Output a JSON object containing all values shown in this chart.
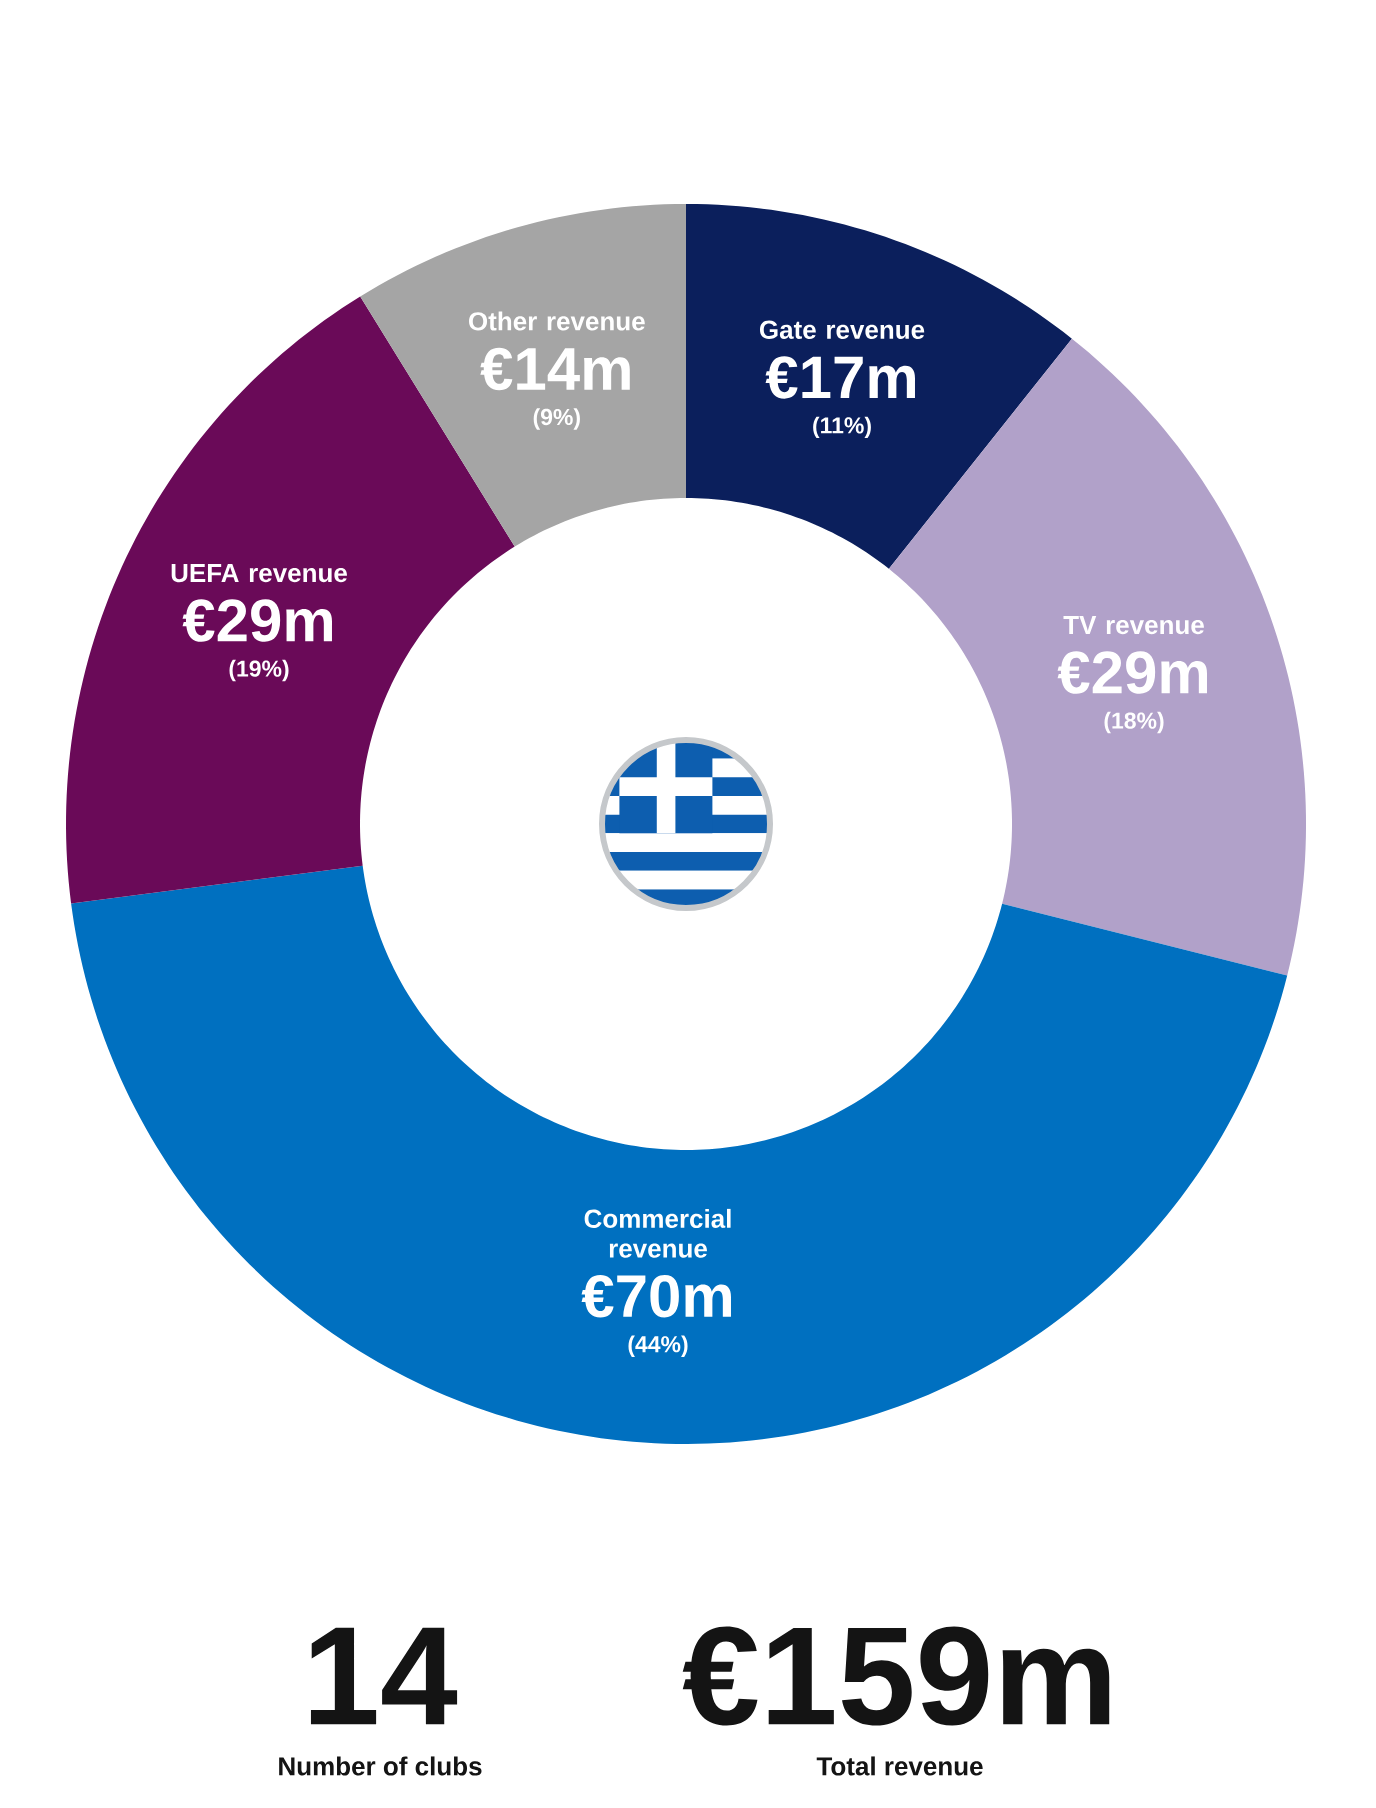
{
  "chart_data": [
    {
      "type": "donut",
      "categories": [
        "Gate revenue",
        "TV revenue",
        "Commercial revenue",
        "UEFA revenue",
        "Other revenue"
      ],
      "values": [
        17,
        29,
        70,
        29,
        14
      ],
      "colors": [
        "#0b1f5c",
        "#b1a1c9",
        "#0070c0",
        "#6a0a58",
        "#a5a5a5"
      ],
      "value_labels": [
        "€17m",
        "€29m",
        "€70m",
        "€29m",
        "€14m"
      ],
      "annotations": [
        "(11%)",
        "(18%)",
        "(44%)",
        "(19%)",
        "(9%)"
      ]
    },
    {
      "type": "other",
      "annotations": [
        "14",
        "Number of clubs",
        "€159m",
        "Total revenue"
      ]
    }
  ]
}
